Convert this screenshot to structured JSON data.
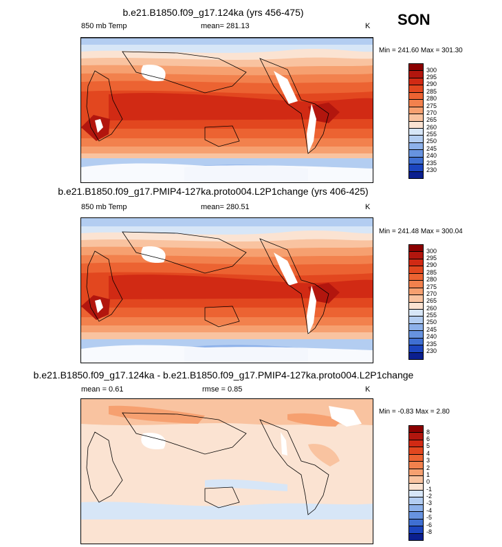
{
  "season": "SON",
  "panels": [
    {
      "title": "b.e21.B1850.f09_g17.124ka (yrs 456-475)",
      "left_label": "850 mb Temp",
      "center_label": "mean= 281.13",
      "right_label": "K",
      "minmax": "Min = 241.60 Max = 301.30"
    },
    {
      "title": "b.e21.B1850.f09_g17.PMIP4-127ka.proto004.L2P1change (yrs 406-425)",
      "left_label": "850 mb Temp",
      "center_label": "mean= 280.51",
      "right_label": "K",
      "minmax": "Min = 241.48 Max = 300.04"
    },
    {
      "title": "b.e21.B1850.f09_g17.124ka - b.e21.B1850.f09_g17.PMIP4-127ka.proto004.L2P1change",
      "left_label": "mean =   0.61",
      "center_label": "rmse =   0.85",
      "right_label": "K",
      "minmax": "Min =  -0.83 Max =   2.80"
    }
  ],
  "chart_data": [
    {
      "type": "heatmap",
      "title": "b.e21.B1850.f09_g17.124ka (yrs 456-475)",
      "variable": "850 mb Temp",
      "units": "K",
      "mean": 281.13,
      "min": 241.6,
      "max": 301.3,
      "colorbar_levels": [
        300,
        295,
        290,
        285,
        280,
        275,
        270,
        265,
        260,
        255,
        250,
        245,
        240,
        235,
        230
      ],
      "colorbar_colors": [
        "#8b0000",
        "#b2160e",
        "#d12a14",
        "#e2471f",
        "#ec6332",
        "#f2814d",
        "#f6a070",
        "#f9c3a0",
        "#fbe3d2",
        "#d7e6f7",
        "#b3cdf1",
        "#8db1ea",
        "#6793e0",
        "#3f6fd2",
        "#1c45bf",
        "#0b1f8f"
      ]
    },
    {
      "type": "heatmap",
      "title": "b.e21.B1850.f09_g17.PMIP4-127ka.proto004.L2P1change (yrs 406-425)",
      "variable": "850 mb Temp",
      "units": "K",
      "mean": 280.51,
      "min": 241.48,
      "max": 300.04,
      "colorbar_levels": [
        300,
        295,
        290,
        285,
        280,
        275,
        270,
        265,
        260,
        255,
        250,
        245,
        240,
        235,
        230
      ],
      "colorbar_colors": [
        "#8b0000",
        "#b2160e",
        "#d12a14",
        "#e2471f",
        "#ec6332",
        "#f2814d",
        "#f6a070",
        "#f9c3a0",
        "#fbe3d2",
        "#d7e6f7",
        "#b3cdf1",
        "#8db1ea",
        "#6793e0",
        "#3f6fd2",
        "#1c45bf",
        "#0b1f8f"
      ]
    },
    {
      "type": "heatmap",
      "title": "b.e21.B1850.f09_g17.124ka - b.e21.B1850.f09_g17.PMIP4-127ka.proto004.L2P1change",
      "units": "K",
      "mean": 0.61,
      "rmse": 0.85,
      "min": -0.83,
      "max": 2.8,
      "colorbar_levels": [
        8,
        6,
        5,
        4,
        3,
        2,
        1,
        0,
        -1,
        -2,
        -3,
        -4,
        -5,
        -6,
        -8
      ],
      "colorbar_colors": [
        "#8b0000",
        "#b2160e",
        "#d12a14",
        "#e2471f",
        "#ec6332",
        "#f2814d",
        "#f6a070",
        "#f9c3a0",
        "#fbe3d2",
        "#d7e6f7",
        "#b3cdf1",
        "#8db1ea",
        "#6793e0",
        "#3f6fd2",
        "#1c45bf",
        "#0b1f8f"
      ]
    }
  ]
}
